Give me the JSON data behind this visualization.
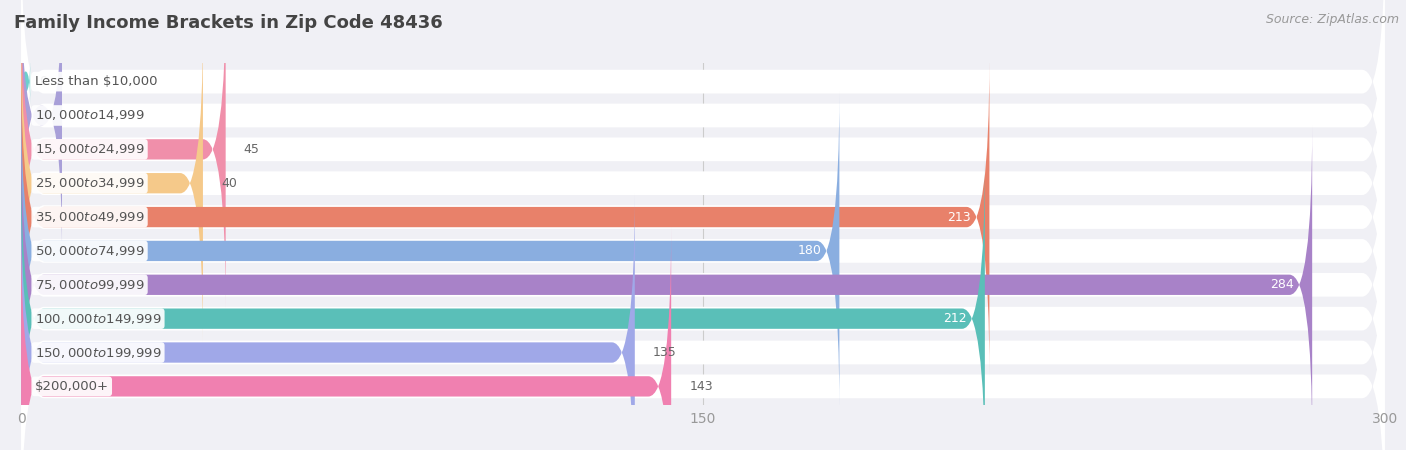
{
  "title": "Family Income Brackets in Zip Code 48436",
  "source": "Source: ZipAtlas.com",
  "categories": [
    "Less than $10,000",
    "$10,000 to $14,999",
    "$15,000 to $24,999",
    "$25,000 to $34,999",
    "$35,000 to $49,999",
    "$50,000 to $74,999",
    "$75,000 to $99,999",
    "$100,000 to $149,999",
    "$150,000 to $199,999",
    "$200,000+"
  ],
  "values": [
    0,
    9,
    45,
    40,
    213,
    180,
    284,
    212,
    135,
    143
  ],
  "bar_colors": [
    "#6ecfcc",
    "#a89fd8",
    "#f08faa",
    "#f5c98a",
    "#e8816a",
    "#8aaee0",
    "#a882c8",
    "#5abfb8",
    "#a0a8e8",
    "#f080b0"
  ],
  "label_colors_inside": [
    false,
    false,
    false,
    false,
    true,
    true,
    true,
    true,
    false,
    false
  ],
  "xlim": [
    0,
    300
  ],
  "xticks": [
    0,
    150,
    300
  ],
  "background_color": "#f0f0f5",
  "row_bg_color": "#e8e8f0",
  "title_fontsize": 13,
  "source_fontsize": 9,
  "label_fontsize": 9,
  "tick_fontsize": 10,
  "category_fontsize": 9.5
}
